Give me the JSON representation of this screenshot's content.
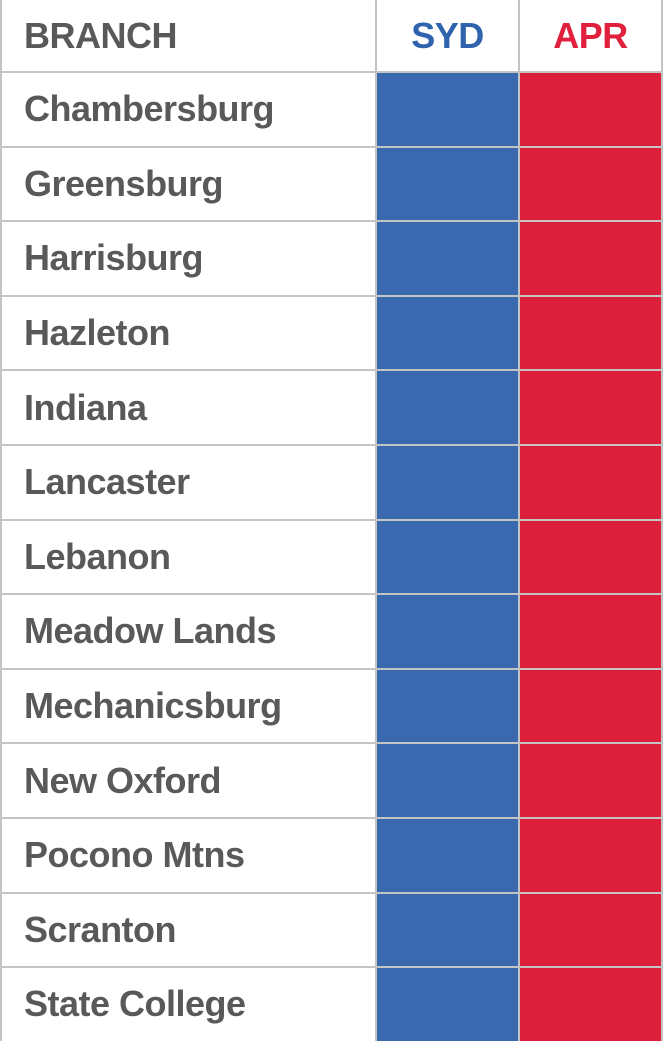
{
  "table": {
    "header": {
      "branch": "BRANCH",
      "syd": "SYD",
      "apr": "APR"
    },
    "rows": [
      "Chambersburg",
      "Greensburg",
      "Harrisburg",
      "Hazleton",
      "Indiana",
      "Lancaster",
      "Lebanon",
      "Meadow Lands",
      "Mechanicsburg",
      "New Oxford",
      "Pocono Mtns",
      "Scranton",
      "State College"
    ]
  },
  "colors": {
    "branch_text": "#595959",
    "syd_header_text": "#2F63AE",
    "apr_header_text": "#E0203C",
    "syd_cell_fill": "#3A69B0",
    "apr_cell_fill": "#DC1F3B",
    "grid_line": "#C4C4C4",
    "cell_background": "#FFFFFF"
  },
  "chart_data": {
    "type": "table",
    "title": "",
    "columns": [
      "BRANCH",
      "SYD",
      "APR"
    ],
    "rows": [
      {
        "BRANCH": "Chambersburg",
        "SYD": "",
        "APR": ""
      },
      {
        "BRANCH": "Greensburg",
        "SYD": "",
        "APR": ""
      },
      {
        "BRANCH": "Harrisburg",
        "SYD": "",
        "APR": ""
      },
      {
        "BRANCH": "Hazleton",
        "SYD": "",
        "APR": ""
      },
      {
        "BRANCH": "Indiana",
        "SYD": "",
        "APR": ""
      },
      {
        "BRANCH": "Lancaster",
        "SYD": "",
        "APR": ""
      },
      {
        "BRANCH": "Lebanon",
        "SYD": "",
        "APR": ""
      },
      {
        "BRANCH": "Meadow Lands",
        "SYD": "",
        "APR": ""
      },
      {
        "BRANCH": "Mechanicsburg",
        "SYD": "",
        "APR": ""
      },
      {
        "BRANCH": "New Oxford",
        "SYD": "",
        "APR": ""
      },
      {
        "BRANCH": "Pocono Mtns",
        "SYD": "",
        "APR": ""
      },
      {
        "BRANCH": "Scranton",
        "SYD": "",
        "APR": ""
      },
      {
        "BRANCH": "State College",
        "SYD": "",
        "APR": ""
      }
    ],
    "notes": "SYD column cells are solid blue fills and APR column cells are solid red fills; no numeric values are visible in the cells. Table is cropped at right and bottom edges."
  }
}
